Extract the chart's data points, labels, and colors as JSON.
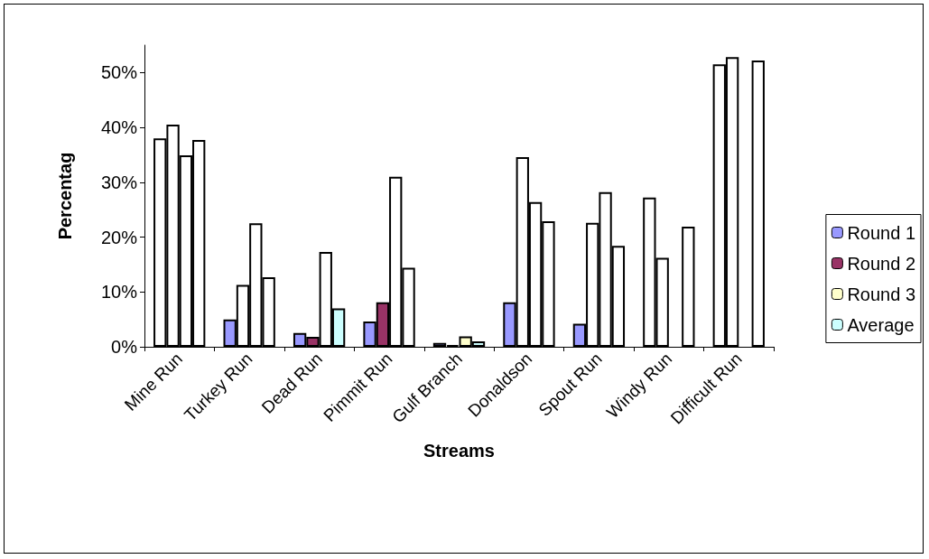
{
  "chart_data": {
    "type": "bar",
    "xlabel": "Streams",
    "ylabel": "Percentag",
    "categories": [
      "Mine Run",
      "Turkey Run",
      "Dead Run",
      "Pimmit Run",
      "Gulf Branch",
      "Donaldson",
      "Spout Run",
      "Windy Run",
      "Difficult Run"
    ],
    "series": [
      {
        "name": "Round 1",
        "color": "#9999ff",
        "values": [
          38.0,
          5.0,
          2.5,
          4.6,
          0.7,
          8.1,
          4.2,
          27.2,
          51.5
        ],
        "colors": [
          "#ffffff",
          "#9999ff",
          "#9999ff",
          "#9999ff",
          "#9999ff",
          "#9999ff",
          "#9999ff",
          "#ffffff",
          "#ffffff"
        ]
      },
      {
        "name": "Round 2",
        "color": "#993366",
        "values": [
          40.5,
          11.3,
          1.8,
          8.1,
          0.3,
          34.6,
          22.6,
          16.2,
          52.8
        ],
        "colors": [
          "#ffffff",
          "#ffffff",
          "#993366",
          "#993366",
          "#000000",
          "#ffffff",
          "#ffffff",
          "#ffffff",
          "#ffffff"
        ]
      },
      {
        "name": "Round 3",
        "color": "#ffffcc",
        "values": [
          34.9,
          22.5,
          17.3,
          31.0,
          1.9,
          26.4,
          28.2,
          null,
          null
        ],
        "colors": [
          "#ffffff",
          "#ffffff",
          "#ffffff",
          "#ffffff",
          "#ffffcc",
          "#ffffff",
          "#ffffff",
          "#ffffff",
          "#ffffff"
        ]
      },
      {
        "name": "Average",
        "color": "#ccffff",
        "values": [
          37.7,
          12.7,
          7.0,
          14.4,
          1.0,
          22.9,
          18.4,
          21.9,
          52.2
        ],
        "colors": [
          "#ffffff",
          "#ffffff",
          "#ccffff",
          "#ffffff",
          "#ccffff",
          "#ffffff",
          "#ffffff",
          "#ffffff",
          "#ffffff"
        ]
      }
    ],
    "ylim": [
      0,
      55
    ],
    "yticks": [
      {
        "value": 0,
        "label": "0%"
      },
      {
        "value": 10,
        "label": "10%"
      },
      {
        "value": 20,
        "label": "20%"
      },
      {
        "value": 30,
        "label": "30%"
      },
      {
        "value": 40,
        "label": "40%"
      },
      {
        "value": 50,
        "label": "50%"
      }
    ],
    "grid": false,
    "legend": "right"
  }
}
